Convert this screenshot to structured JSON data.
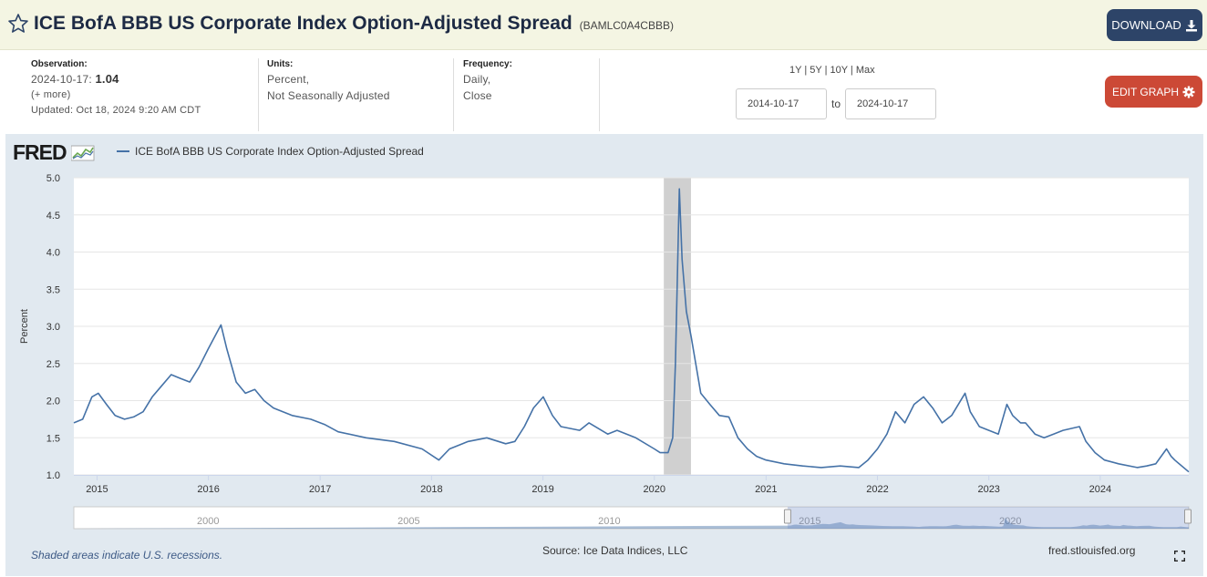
{
  "header": {
    "title": "ICE BofA BBB US Corporate Index Option-Adjusted Spread",
    "series_id": "(BAMLC0A4CBBB)",
    "download_label": "DOWNLOAD"
  },
  "observation": {
    "label": "Observation:",
    "date": "2024-10-17:",
    "value": "1.04",
    "more": "(+ more)",
    "updated": "Updated: Oct 18, 2024 9:20 AM CDT"
  },
  "units": {
    "label": "Units:",
    "line1": "Percent,",
    "line2": "Not Seasonally Adjusted"
  },
  "frequency": {
    "label": "Frequency:",
    "line1": "Daily,",
    "line2": "Close"
  },
  "range": {
    "options": [
      "1Y",
      "5Y",
      "10Y",
      "Max"
    ],
    "separator": " | ",
    "start": "2014-10-17",
    "to_label": "to",
    "end": "2024-10-17"
  },
  "edit_graph_label": "EDIT GRAPH",
  "logo": {
    "text": "FRED"
  },
  "footer": {
    "note": "Shaded areas indicate U.S. recessions.",
    "source": "Source: Ice Data Indices, LLC",
    "url": "fred.stlouisfed.org"
  },
  "colors": {
    "line": "#4572a7",
    "recession": "#c8c8c8",
    "download_bg": "#2d4468",
    "edit_bg": "#cc4936",
    "panel_bg": "#e1e9f0"
  },
  "chart_data": {
    "type": "line",
    "ylabel": "Percent",
    "ylim": [
      1.0,
      5.0
    ],
    "yticks": [
      "1.0",
      "1.5",
      "2.0",
      "2.5",
      "3.0",
      "3.5",
      "4.0",
      "4.5",
      "5.0"
    ],
    "xlim": [
      "2014-10-17",
      "2024-10-17"
    ],
    "xticks": [
      "2015",
      "2016",
      "2017",
      "2018",
      "2019",
      "2020",
      "2021",
      "2022",
      "2023",
      "2024"
    ],
    "recessions": [
      [
        "2020-02-01",
        "2020-04-30"
      ]
    ],
    "series": [
      {
        "name": "ICE BofA BBB US Corporate Index Option-Adjusted Spread",
        "x": [
          "2014-10-17",
          "2014-11-15",
          "2014-12-15",
          "2015-01-05",
          "2015-02-01",
          "2015-03-01",
          "2015-04-01",
          "2015-05-01",
          "2015-06-01",
          "2015-07-01",
          "2015-08-01",
          "2015-09-01",
          "2015-10-01",
          "2015-11-01",
          "2015-12-01",
          "2016-01-01",
          "2016-02-11",
          "2016-03-01",
          "2016-04-01",
          "2016-05-01",
          "2016-06-01",
          "2016-07-01",
          "2016-08-01",
          "2016-10-01",
          "2016-12-01",
          "2017-01-15",
          "2017-03-01",
          "2017-06-01",
          "2017-09-01",
          "2017-12-01",
          "2018-01-25",
          "2018-03-01",
          "2018-05-01",
          "2018-07-01",
          "2018-09-01",
          "2018-10-01",
          "2018-11-01",
          "2018-12-01",
          "2019-01-02",
          "2019-02-01",
          "2019-03-01",
          "2019-05-01",
          "2019-06-01",
          "2019-08-01",
          "2019-09-01",
          "2019-11-01",
          "2020-01-01",
          "2020-01-20",
          "2020-02-15",
          "2020-03-01",
          "2020-03-10",
          "2020-03-23",
          "2020-04-01",
          "2020-04-15",
          "2020-05-01",
          "2020-06-01",
          "2020-07-01",
          "2020-08-01",
          "2020-09-01",
          "2020-10-01",
          "2020-11-01",
          "2020-12-01",
          "2021-01-01",
          "2021-03-01",
          "2021-05-01",
          "2021-07-01",
          "2021-09-01",
          "2021-11-01",
          "2021-12-01",
          "2022-01-01",
          "2022-02-01",
          "2022-03-01",
          "2022-04-01",
          "2022-05-01",
          "2022-06-01",
          "2022-07-01",
          "2022-08-01",
          "2022-09-01",
          "2022-10-15",
          "2022-11-01",
          "2022-12-01",
          "2023-01-01",
          "2023-02-01",
          "2023-03-01",
          "2023-03-20",
          "2023-04-15",
          "2023-05-01",
          "2023-06-01",
          "2023-07-01",
          "2023-08-01",
          "2023-09-01",
          "2023-10-25",
          "2023-11-15",
          "2023-12-15",
          "2024-01-15",
          "2024-03-01",
          "2024-05-01",
          "2024-06-01",
          "2024-07-01",
          "2024-08-05",
          "2024-08-20",
          "2024-09-01",
          "2024-10-17"
        ],
        "values": [
          1.7,
          1.75,
          2.05,
          2.1,
          1.95,
          1.8,
          1.75,
          1.78,
          1.85,
          2.05,
          2.2,
          2.35,
          2.3,
          2.25,
          2.45,
          2.7,
          3.02,
          2.7,
          2.25,
          2.1,
          2.15,
          2.0,
          1.9,
          1.8,
          1.75,
          1.68,
          1.58,
          1.5,
          1.45,
          1.35,
          1.2,
          1.35,
          1.45,
          1.5,
          1.42,
          1.45,
          1.65,
          1.9,
          2.05,
          1.8,
          1.65,
          1.6,
          1.7,
          1.55,
          1.6,
          1.5,
          1.35,
          1.3,
          1.3,
          1.5,
          2.5,
          4.85,
          3.9,
          3.2,
          2.85,
          2.1,
          1.95,
          1.8,
          1.78,
          1.5,
          1.35,
          1.25,
          1.2,
          1.15,
          1.12,
          1.1,
          1.12,
          1.1,
          1.2,
          1.35,
          1.55,
          1.85,
          1.7,
          1.95,
          2.05,
          1.9,
          1.7,
          1.8,
          2.1,
          1.85,
          1.65,
          1.6,
          1.55,
          1.95,
          1.8,
          1.7,
          1.7,
          1.55,
          1.5,
          1.55,
          1.6,
          1.65,
          1.45,
          1.3,
          1.2,
          1.15,
          1.1,
          1.12,
          1.15,
          1.35,
          1.25,
          1.2,
          1.04
        ]
      }
    ],
    "navigator": {
      "xlim": [
        "1996-12-31",
        "2024-10-17"
      ],
      "labels": [
        "2000",
        "2005",
        "2010",
        "2015",
        "2020"
      ]
    }
  }
}
